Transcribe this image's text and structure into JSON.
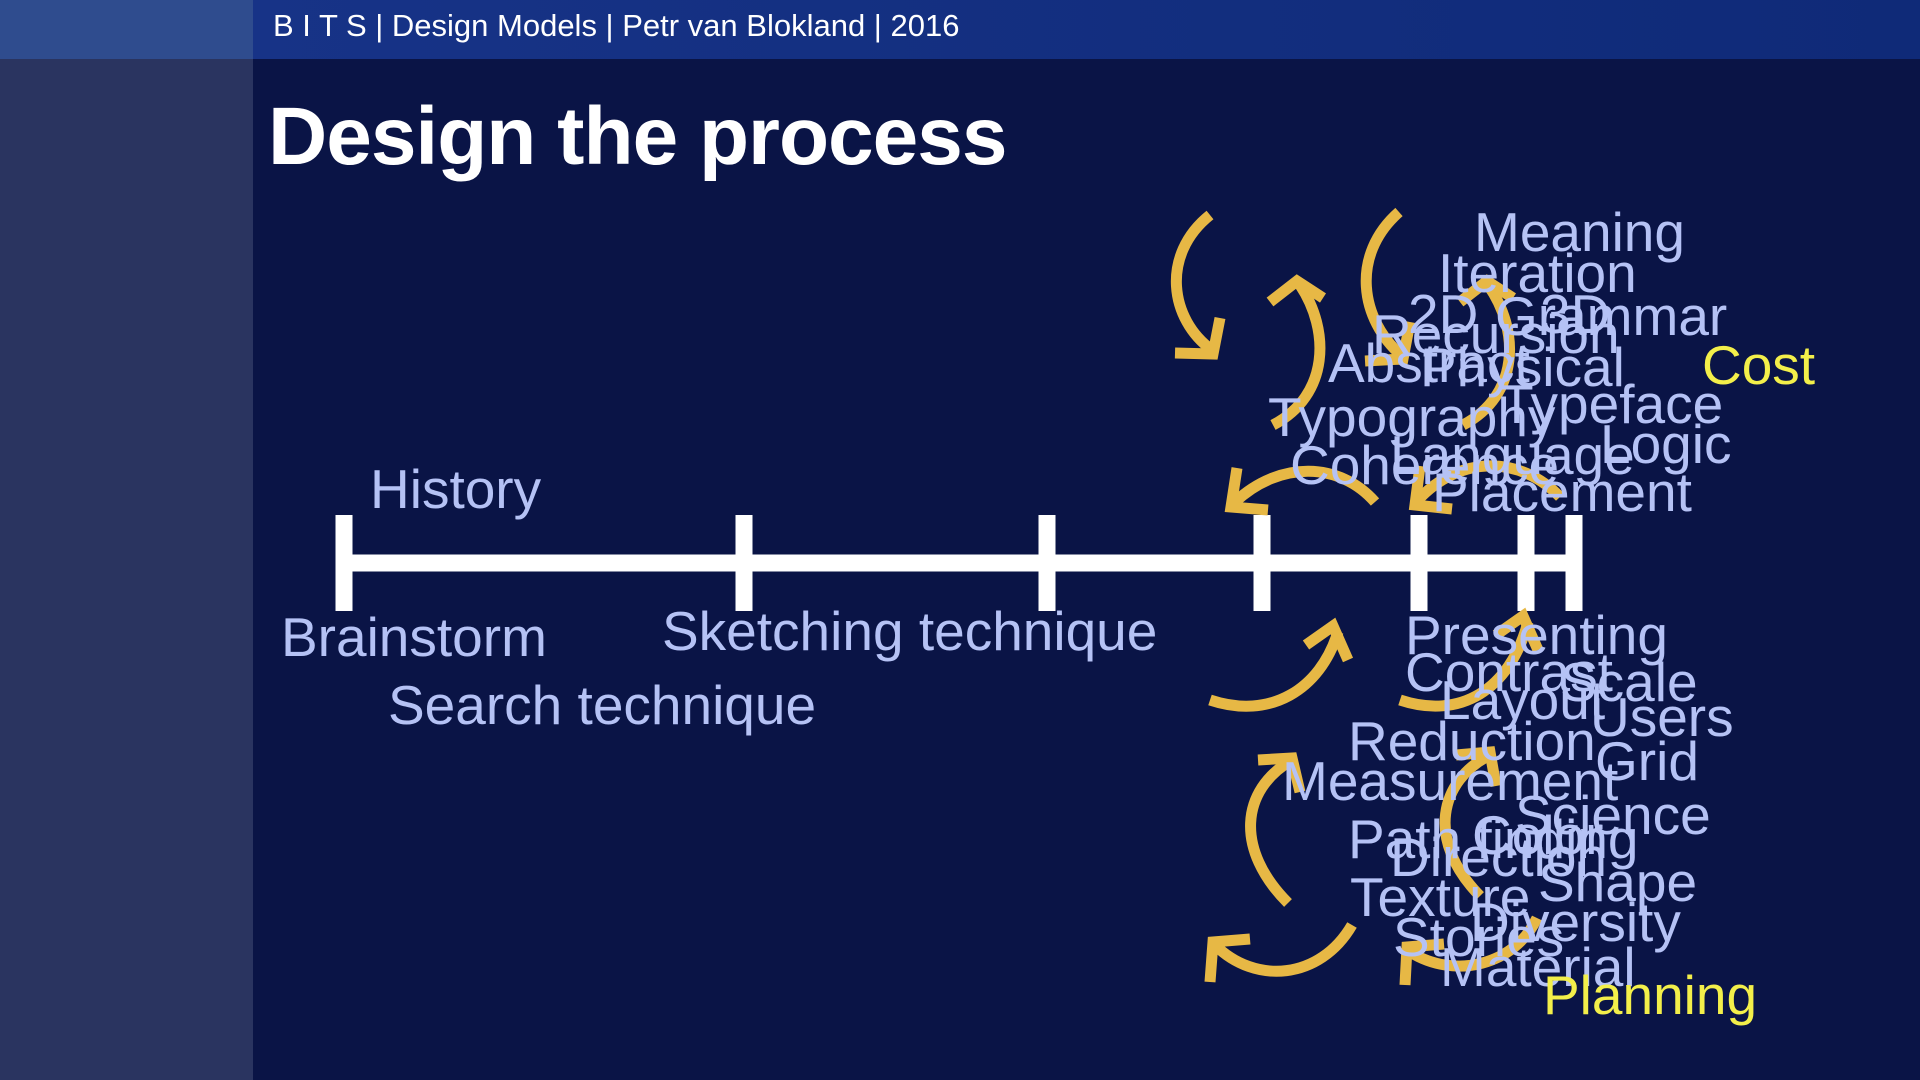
{
  "header": {
    "text": "B I T S | Design Models | Petr van Blokland | 2016"
  },
  "slide": {
    "title": "Design the process"
  },
  "timeline": {
    "above": [
      "History"
    ],
    "below": [
      "Brainstorm",
      "Search technique",
      "Sketching technique"
    ]
  },
  "upper_cluster": [
    "Meaning",
    "Iteration",
    "2D",
    "3D",
    "Grammar",
    "Recursion",
    "Abstract",
    "Physical",
    "Typeface",
    "Typography",
    "Logic",
    "Language",
    "Coherence",
    "Placement"
  ],
  "lower_cluster": [
    "Presenting",
    "Contrast",
    "Scale",
    "Layout",
    "Users",
    "Reduction",
    "Grid",
    "Measurement",
    "Science",
    "Path finding",
    "Color",
    "Direction",
    "Shape",
    "Texture",
    "Diversity",
    "Stories",
    "Material"
  ],
  "highlights": {
    "top": "Cost",
    "bottom": "Planning"
  },
  "colors": {
    "background": "#0a1446",
    "sidebar": "#2a3460",
    "header_bar": "#173387",
    "label_text": "#b5c2f5",
    "highlight_text": "#f3ef4a",
    "arrows": "#e7b845",
    "timeline": "#ffffff"
  },
  "icons": [
    "curved-arrow-icon"
  ]
}
